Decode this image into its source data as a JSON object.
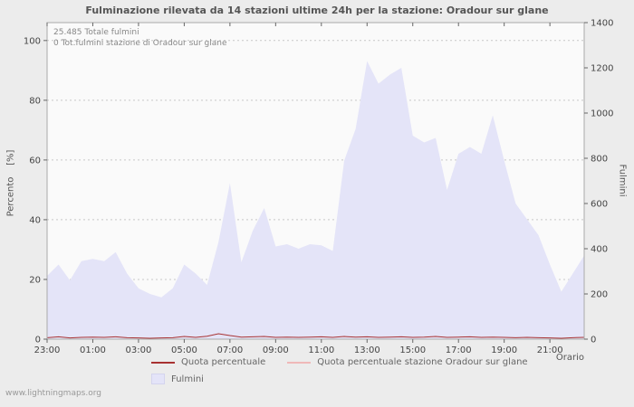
{
  "title": "Fulminazione rilevata da 14 stazioni ultime 24h per la stazione: Oradour sur glane",
  "annotations": {
    "total": "25.485 Totale fulmini",
    "station_total": "0 Tot.fulmini stazione di Oradour sur glane"
  },
  "watermark": "www.lightningmaps.org",
  "colors": {
    "page_bg": "#ececec",
    "plot_bg": "#fafafa",
    "grid": "#c8c8c8",
    "border": "#aaaaaa",
    "tick": "#666666",
    "title_text": "#555555",
    "annotation_text": "#888888",
    "area_fill": "#e4e4f8",
    "percent_line": "#a83232",
    "station_line": "#f0b8b8"
  },
  "chart_data": {
    "type": "area",
    "title": "Fulminazione rilevata da 14 stazioni ultime 24h per la stazione: Oradour sur glane",
    "xlabel": "Orario",
    "ylabel_left": "Percento    [%]",
    "ylabel_right": "Fulmini",
    "ylim_left": [
      0,
      100
    ],
    "ylim_right": [
      0,
      1400
    ],
    "left_ticks": [
      0,
      20,
      40,
      60,
      80,
      100
    ],
    "right_ticks": [
      0,
      200,
      400,
      600,
      800,
      1000,
      1200,
      1400
    ],
    "x_tick_labels": [
      "23:00",
      "01:00",
      "03:00",
      "05:00",
      "07:00",
      "09:00",
      "11:00",
      "13:00",
      "15:00",
      "17:00",
      "19:00",
      "21:00"
    ],
    "x_tick_hours": [
      0,
      2,
      4,
      6,
      8,
      10,
      12,
      14,
      16,
      18,
      20,
      22
    ],
    "x_start_hour": 0,
    "x_step_hours": 0.5,
    "x_end_hour": 23.5,
    "grid": "dashed-horizontal",
    "legend_position": "bottom",
    "series": [
      {
        "name": "Fulmini",
        "type": "area",
        "axis": "right",
        "color": "#e4e4f8",
        "values": [
          280,
          330,
          260,
          345,
          355,
          345,
          385,
          290,
          225,
          200,
          185,
          225,
          330,
          290,
          240,
          430,
          690,
          340,
          480,
          580,
          410,
          420,
          400,
          420,
          415,
          390,
          790,
          930,
          1230,
          1130,
          1170,
          1200,
          900,
          870,
          890,
          660,
          820,
          850,
          820,
          990,
          790,
          600,
          530,
          460,
          330,
          210,
          290,
          370
        ]
      },
      {
        "name": "Quota percentuale",
        "type": "line",
        "axis": "left",
        "color": "#a83232",
        "values": [
          0.5,
          0.8,
          0.4,
          0.6,
          0.7,
          0.6,
          0.8,
          0.5,
          0.4,
          0.3,
          0.4,
          0.5,
          0.9,
          0.6,
          1.0,
          1.8,
          1.2,
          0.7,
          0.8,
          0.9,
          0.6,
          0.7,
          0.6,
          0.7,
          0.8,
          0.6,
          0.9,
          0.7,
          0.8,
          0.6,
          0.7,
          0.8,
          0.6,
          0.7,
          0.9,
          0.6,
          0.7,
          0.8,
          0.6,
          0.7,
          0.6,
          0.5,
          0.6,
          0.5,
          0.4,
          0.3,
          0.5,
          0.6
        ]
      },
      {
        "name": "Quota percentuale stazione Oradour sur glane",
        "type": "line",
        "axis": "left",
        "color": "#f0b8b8",
        "values": [
          0,
          0,
          0,
          0,
          0,
          0,
          0,
          0,
          0,
          0,
          0,
          0,
          0,
          0,
          0,
          0,
          0,
          0,
          0,
          0,
          0,
          0,
          0,
          0,
          0,
          0,
          0,
          0,
          0,
          0,
          0,
          0,
          0,
          0,
          0,
          0,
          0,
          0,
          0,
          0,
          0,
          0,
          0,
          0,
          0,
          0,
          0,
          0
        ]
      }
    ]
  }
}
